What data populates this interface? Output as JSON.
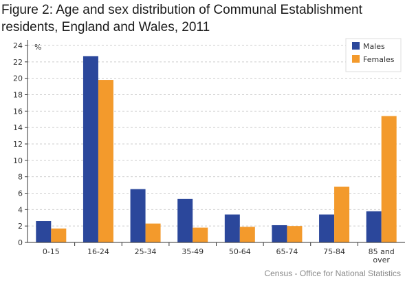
{
  "title": "Figure 2: Age and sex distribution of Communal Establishment residents, England and Wales, 2011",
  "source": "Census - Office for National Statistics",
  "colors": {
    "males": "#2b479b",
    "females": "#f39a2c",
    "grid": "#cccccc",
    "axis": "#333333"
  },
  "chart_data": {
    "type": "bar",
    "title": "Figure 2: Age and sex distribution of Communal Establishment residents, England and Wales, 2011",
    "xlabel": "",
    "ylabel": "%",
    "ylim": [
      0,
      24
    ],
    "yticks": [
      0,
      2,
      4,
      6,
      8,
      10,
      12,
      14,
      16,
      18,
      20,
      22,
      24
    ],
    "grid": true,
    "legend": "top-right",
    "categories": [
      "0-15",
      "16-24",
      "25-34",
      "35-49",
      "50-64",
      "65-74",
      "75-84",
      "85 and over"
    ],
    "series": [
      {
        "name": "Males",
        "color": "#2b479b",
        "values": [
          2.6,
          22.7,
          6.5,
          5.3,
          3.4,
          2.1,
          3.4,
          3.8
        ]
      },
      {
        "name": "Females",
        "color": "#f39a2c",
        "values": [
          1.7,
          19.8,
          2.3,
          1.8,
          1.9,
          2.0,
          6.8,
          15.4
        ]
      }
    ]
  }
}
